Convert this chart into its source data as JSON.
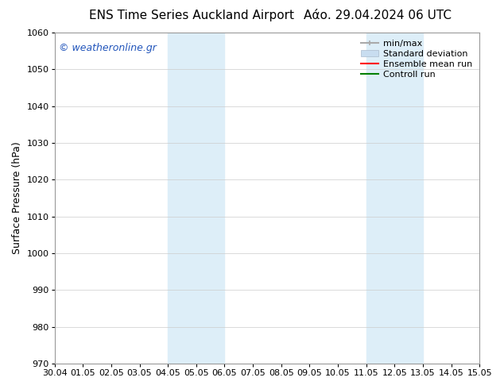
{
  "title_left": "ENS Time Series Auckland Airport",
  "title_right": "Αάο. 29.04.2024 06 UTC",
  "ylabel": "Surface Pressure (hPa)",
  "ylim": [
    970,
    1060
  ],
  "yticks": [
    970,
    980,
    990,
    1000,
    1010,
    1020,
    1030,
    1040,
    1050,
    1060
  ],
  "x_labels": [
    "30.04",
    "01.05",
    "02.05",
    "03.05",
    "04.05",
    "05.05",
    "06.05",
    "07.05",
    "08.05",
    "09.05",
    "10.05",
    "11.05",
    "12.05",
    "13.05",
    "14.05",
    "15.05"
  ],
  "x_values": [
    0,
    1,
    2,
    3,
    4,
    5,
    6,
    7,
    8,
    9,
    10,
    11,
    12,
    13,
    14,
    15
  ],
  "xlim": [
    0,
    15
  ],
  "shaded_regions": [
    {
      "x_start": 4,
      "x_end": 6,
      "color": "#ddeef8"
    },
    {
      "x_start": 11,
      "x_end": 13,
      "color": "#ddeef8"
    }
  ],
  "watermark_text": "© weatheronline.gr",
  "watermark_color": "#2255bb",
  "bg_color": "#ffffff",
  "plot_bg_color": "#ffffff",
  "grid_color": "#cccccc",
  "spine_color": "#999999",
  "legend_items": [
    {
      "label": "min/max",
      "color": "#aaaaaa",
      "lw": 1.5
    },
    {
      "label": "Standard deviation",
      "color": "#c8ddf0",
      "lw": 8
    },
    {
      "label": "Ensemble mean run",
      "color": "#ff0000",
      "lw": 1.5
    },
    {
      "label": "Controll run",
      "color": "#008000",
      "lw": 1.5
    }
  ],
  "title_fontsize": 11,
  "ylabel_fontsize": 9,
  "tick_fontsize": 8,
  "watermark_fontsize": 9,
  "legend_fontsize": 8
}
